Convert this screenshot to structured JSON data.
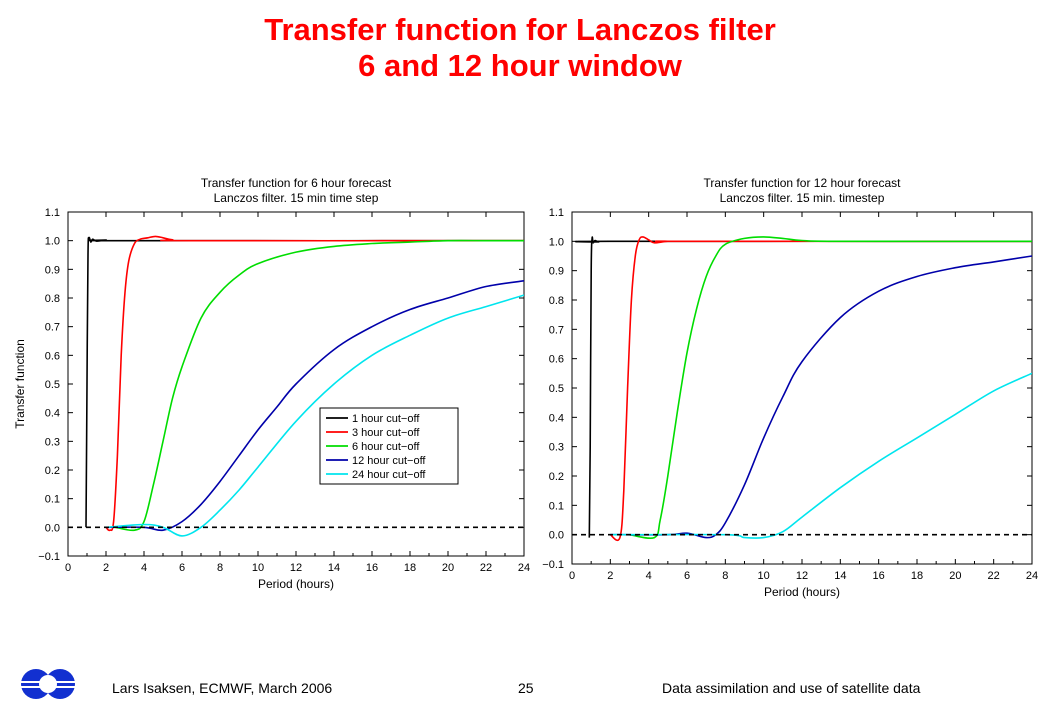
{
  "slide": {
    "title_line1": "Transfer function for Lanczos filter",
    "title_line2": "6 and 12 hour window",
    "footer_left": "Lars Isaksen, ECMWF, March 2006",
    "page_number": "25",
    "footer_right": "Data assimilation and use of satellite data",
    "title_color": "#ff0000",
    "logo_icon": "ecmwf-logo-icon",
    "logo_color": "#1230d0"
  },
  "chart_data": [
    {
      "type": "line",
      "title": "Transfer function for 6 hour forecast",
      "subtitle": "Lanczos filter. 15 min time step",
      "xlabel": "Period (hours)",
      "ylabel": "Transfer function",
      "xlim": [
        0,
        24
      ],
      "ylim": [
        -0.1,
        1.1
      ],
      "xticks": [
        0,
        2,
        4,
        6,
        8,
        10,
        12,
        14,
        16,
        18,
        20,
        22,
        24
      ],
      "yticks": [
        -0.1,
        0.0,
        0.1,
        0.2,
        0.3,
        0.4,
        0.5,
        0.6,
        0.7,
        0.8,
        0.9,
        1.0,
        1.1
      ],
      "ytick_labels": [
        "−0.1",
        "0.0",
        "0.1",
        "0.2",
        "0.3",
        "0.4",
        "0.5",
        "0.6",
        "0.7",
        "0.8",
        "0.9",
        "1.0",
        "1.1"
      ],
      "grid": false,
      "legend_position": "lower-right",
      "reference_line": {
        "y": 0.0,
        "style": "dashed"
      },
      "series": [
        {
          "name": "1 hour cut−off",
          "color": "#000000",
          "x": [
            0.95,
            1.0,
            1.05,
            1.1,
            1.2,
            1.3,
            1.5,
            2,
            3,
            24
          ],
          "y": [
            0.0,
            0.5,
            0.95,
            1.01,
            0.995,
            1.005,
            0.998,
            1.002,
            1.0,
            1.0
          ]
        },
        {
          "name": "3 hour cut−off",
          "color": "#ff0000",
          "x": [
            2.0,
            2.2,
            2.4,
            2.6,
            2.8,
            3.0,
            3.2,
            3.5,
            3.8,
            4.2,
            4.6,
            5.0,
            5.5,
            6.5,
            24
          ],
          "y": [
            0.0,
            -0.01,
            0.02,
            0.25,
            0.6,
            0.82,
            0.93,
            0.99,
            1.005,
            1.01,
            1.015,
            1.01,
            1.003,
            1.0,
            1.0
          ]
        },
        {
          "name": "6 hour cut−off",
          "color": "#00dd00",
          "x": [
            2.5,
            3.5,
            4.0,
            4.5,
            5.0,
            5.5,
            6.0,
            7.0,
            8.0,
            9.0,
            10.0,
            12.0,
            14.0,
            16.0,
            18.0,
            20.0,
            22.0,
            24.0
          ],
          "y": [
            0.0,
            -0.01,
            0.02,
            0.15,
            0.3,
            0.45,
            0.56,
            0.73,
            0.82,
            0.88,
            0.92,
            0.96,
            0.98,
            0.99,
            0.995,
            1.0,
            1.0,
            1.0
          ]
        },
        {
          "name": "12 hour cut−off",
          "color": "#0000aa",
          "x": [
            2.0,
            4.0,
            5.0,
            6.0,
            7.0,
            8.0,
            9.0,
            10.0,
            11.0,
            12.0,
            14.0,
            16.0,
            18.0,
            20.0,
            22.0,
            24.0
          ],
          "y": [
            0.0,
            0.0,
            -0.01,
            0.02,
            0.08,
            0.16,
            0.25,
            0.34,
            0.42,
            0.5,
            0.62,
            0.7,
            0.76,
            0.8,
            0.84,
            0.86
          ]
        },
        {
          "name": "24 hour cut−off",
          "color": "#00e5ee",
          "x": [
            2.0,
            4.0,
            5.0,
            6.0,
            7.0,
            8.0,
            9.0,
            10.0,
            12.0,
            14.0,
            16.0,
            18.0,
            20.0,
            22.0,
            24.0
          ],
          "y": [
            0.0,
            0.01,
            0.0,
            -0.03,
            0.0,
            0.06,
            0.13,
            0.21,
            0.37,
            0.5,
            0.6,
            0.67,
            0.73,
            0.77,
            0.81
          ]
        }
      ]
    },
    {
      "type": "line",
      "title": "Transfer function for 12 hour forecast",
      "subtitle": "Lanczos filter. 15 min. timestep",
      "xlabel": "Period (hours)",
      "ylabel": "",
      "xlim": [
        0,
        24
      ],
      "ylim": [
        -0.1,
        1.1
      ],
      "xticks": [
        0,
        2,
        4,
        6,
        8,
        10,
        12,
        14,
        16,
        18,
        20,
        22,
        24
      ],
      "yticks": [
        -0.1,
        0.0,
        0.1,
        0.2,
        0.3,
        0.4,
        0.5,
        0.6,
        0.7,
        0.8,
        0.9,
        1.0,
        1.1
      ],
      "ytick_labels": [
        "−0.1",
        "0.0",
        "0.1",
        "0.2",
        "0.3",
        "0.4",
        "0.5",
        "0.6",
        "0.7",
        "0.8",
        "0.9",
        "1.0",
        "1.1"
      ],
      "grid": false,
      "reference_line": {
        "y": 0.0,
        "style": "dashed"
      },
      "series": [
        {
          "color": "#000000",
          "x": [
            0.9,
            0.95,
            1.0,
            1.05,
            1.1,
            1.2,
            1.4,
            2.0,
            24.0
          ],
          "y": [
            -0.01,
            0.3,
            0.9,
            1.01,
            0.995,
            1.003,
            0.998,
            1.0,
            1.0
          ]
        },
        {
          "color": "#ff0000",
          "x": [
            2.0,
            2.5,
            2.7,
            2.9,
            3.1,
            3.3,
            3.5,
            3.7,
            4.0,
            4.3,
            5.0,
            6.0,
            24.0
          ],
          "y": [
            0.0,
            -0.01,
            0.15,
            0.5,
            0.8,
            0.95,
            1.005,
            1.015,
            1.005,
            0.995,
            1.0,
            1.0,
            1.0
          ]
        },
        {
          "color": "#00dd00",
          "x": [
            3.0,
            4.3,
            4.6,
            5.0,
            5.5,
            6.0,
            6.5,
            7.0,
            7.5,
            8.0,
            9.0,
            10.0,
            11.0,
            12.0,
            14.0,
            24.0
          ],
          "y": [
            0.0,
            -0.01,
            0.05,
            0.2,
            0.42,
            0.62,
            0.77,
            0.88,
            0.95,
            0.99,
            1.01,
            1.015,
            1.01,
            1.003,
            1.0,
            1.0
          ]
        },
        {
          "color": "#0000aa",
          "x": [
            2.0,
            5.0,
            6.0,
            7.0,
            7.5,
            8.0,
            9.0,
            10.0,
            11.0,
            12.0,
            14.0,
            16.0,
            18.0,
            20.0,
            22.0,
            24.0
          ],
          "y": [
            0.0,
            0.0,
            0.005,
            -0.01,
            0.0,
            0.04,
            0.17,
            0.33,
            0.47,
            0.59,
            0.74,
            0.83,
            0.88,
            0.91,
            0.93,
            0.95
          ]
        },
        {
          "color": "#00e5ee",
          "x": [
            2.0,
            8.0,
            9.0,
            10.0,
            11.0,
            12.0,
            14.0,
            16.0,
            18.0,
            20.0,
            22.0,
            24.0
          ],
          "y": [
            0.0,
            0.0,
            -0.01,
            -0.01,
            0.01,
            0.06,
            0.16,
            0.25,
            0.33,
            0.41,
            0.49,
            0.55
          ]
        }
      ]
    }
  ]
}
